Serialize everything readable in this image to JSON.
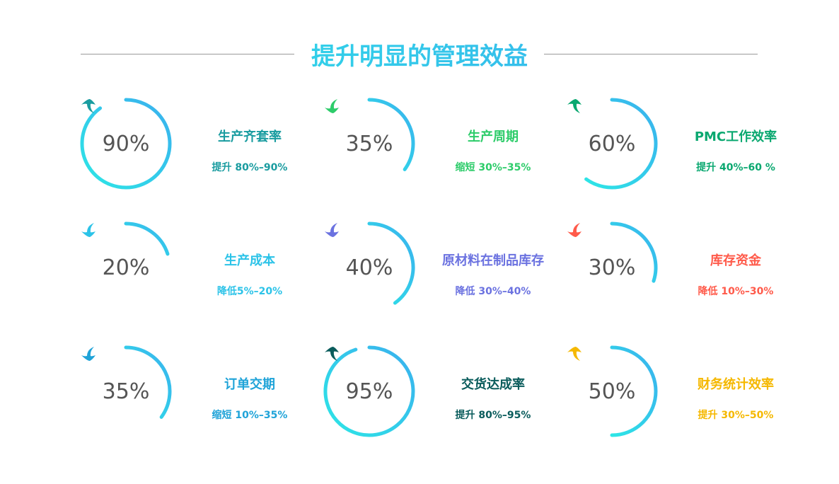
{
  "title": "提升明显的管理效益",
  "arc_gradient": [
    "#2de6e6",
    "#3ab0ee"
  ],
  "items": [
    {
      "percent_label": "90%",
      "value": 90,
      "name": "生产齐套率",
      "desc": "提升 80%–90%",
      "color": "#1a9ca0",
      "icon": "arrow-up-icon"
    },
    {
      "percent_label": "35%",
      "value": 35,
      "name": "生产周期",
      "desc": "缩短 30%–35%",
      "color": "#2dcc6a",
      "icon": "arrow-down-icon"
    },
    {
      "percent_label": "60%",
      "value": 60,
      "name": "PMC工作效率",
      "desc": "提升 40%–60 %",
      "color": "#0aa870",
      "icon": "arrow-up-icon"
    },
    {
      "percent_label": "20%",
      "value": 20,
      "name": "生产成本",
      "desc": "降低5%–20%",
      "color": "#2cc3e8",
      "icon": "arrow-down-icon"
    },
    {
      "percent_label": "40%",
      "value": 40,
      "name": "原材料在制品库存",
      "desc": "降低 30%–40%",
      "color": "#6b72e0",
      "icon": "arrow-down-icon"
    },
    {
      "percent_label": "30%",
      "value": 30,
      "name": "库存资金",
      "desc": "降低 10%–30%",
      "color": "#ff5a4a",
      "icon": "arrow-down-icon"
    },
    {
      "percent_label": "35%",
      "value": 35,
      "name": "订单交期",
      "desc": "缩短 10%–35%",
      "color": "#1fa3d8",
      "icon": "arrow-down-icon"
    },
    {
      "percent_label": "95%",
      "value": 95,
      "name": "交货达成率",
      "desc": "提升 80%–95%",
      "color": "#0a5c5c",
      "icon": "arrow-up-icon"
    },
    {
      "percent_label": "50%",
      "value": 50,
      "name": "财务统计效率",
      "desc": "提升 30%–50%",
      "color": "#f5b800",
      "icon": "arrow-up-icon"
    }
  ]
}
